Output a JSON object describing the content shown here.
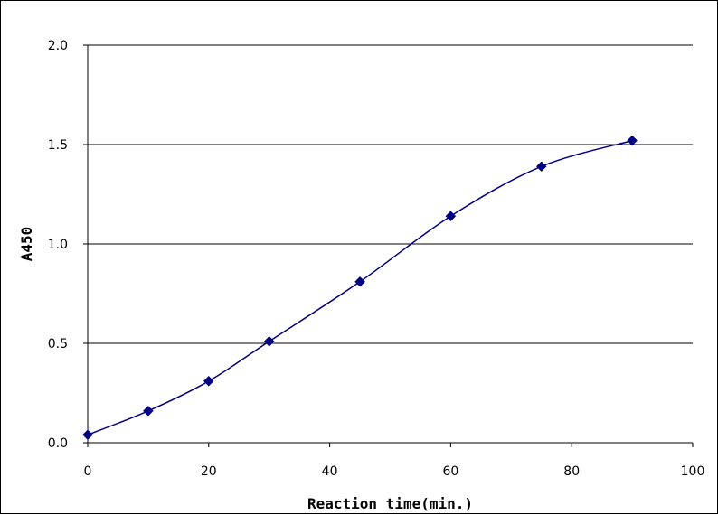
{
  "chart_data": {
    "type": "line",
    "title": "",
    "xlabel": "Reaction time(min.)",
    "ylabel": "A450",
    "xlim": [
      0,
      100
    ],
    "ylim": [
      0,
      2.0
    ],
    "x_ticks": [
      "0",
      "20",
      "40",
      "60",
      "80",
      "100"
    ],
    "y_ticks": [
      "0.0",
      "0.5",
      "1.0",
      "1.5",
      "2.0"
    ],
    "grid": "horizontal",
    "legend": "none",
    "series": [
      {
        "color": "#000080",
        "marker": "diamond",
        "x": [
          0,
          10,
          20,
          30,
          45,
          60,
          75,
          90
        ],
        "y": [
          0.04,
          0.16,
          0.31,
          0.51,
          0.81,
          1.14,
          1.39,
          1.52
        ]
      }
    ]
  }
}
